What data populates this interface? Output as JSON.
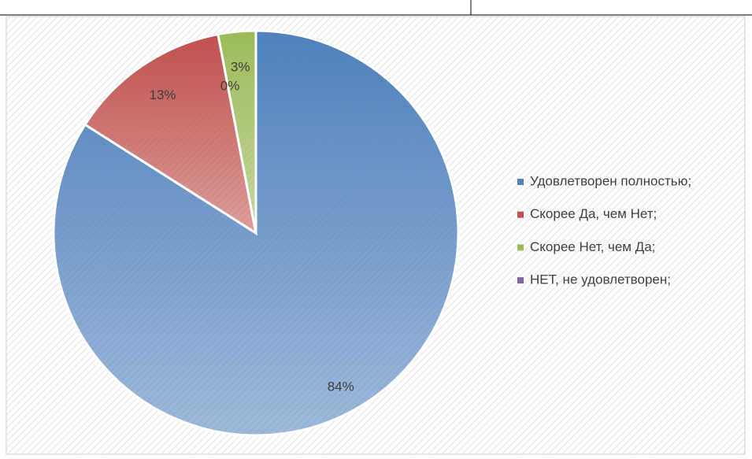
{
  "chart_data": {
    "type": "pie",
    "categories": [
      "Удовлетворен полностью;",
      "Скорее Да, чем Нет;",
      "Скорее Нет, чем Да;",
      "НЕТ, не удовлетворен;"
    ],
    "values": [
      84,
      13,
      3,
      0
    ],
    "value_labels": [
      "84%",
      "13%",
      "3%",
      "0%"
    ],
    "colors": [
      "#4f81bd",
      "#c0504d",
      "#9bbb59",
      "#8064a2"
    ],
    "legend": "right"
  }
}
